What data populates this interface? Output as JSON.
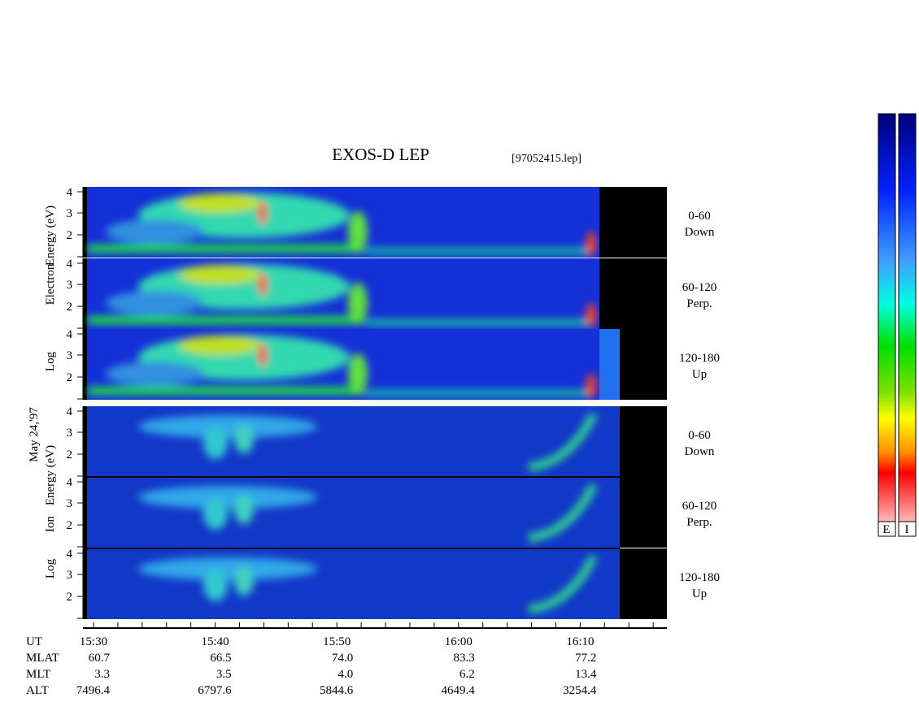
{
  "title": "EXOS-D LEP",
  "file": "[97052415.lep]",
  "date": "May 24,'97",
  "electron_label": [
    "Log",
    "Electron",
    "Energy (eV)"
  ],
  "ion_label": [
    "Log",
    "Ion",
    "Energy (eV)"
  ],
  "energy_ticks": [
    "4",
    "3",
    "2"
  ],
  "pitch_angles": [
    {
      "range": "0-60",
      "dir": "Down"
    },
    {
      "range": "60-120",
      "dir": "Perp."
    },
    {
      "range": "120-180",
      "dir": "Up"
    }
  ],
  "time_axis": {
    "label": "UT",
    "ticks": [
      "15:30",
      "15:40",
      "15:50",
      "16:00",
      "16:10"
    ]
  },
  "ephemeris": [
    {
      "label": "MLAT",
      "values": [
        "60.7",
        "66.5",
        "74.0",
        "83.3",
        "77.2"
      ]
    },
    {
      "label": "MLT",
      "values": [
        "3.3",
        "3.5",
        "4.0",
        "6.2",
        "13.4"
      ]
    },
    {
      "label": "ALT",
      "values": [
        "7496.4",
        "6797.6",
        "5844.6",
        "4649.4",
        "3254.4"
      ]
    }
  ],
  "colorbars": [
    "E",
    "I"
  ]
}
